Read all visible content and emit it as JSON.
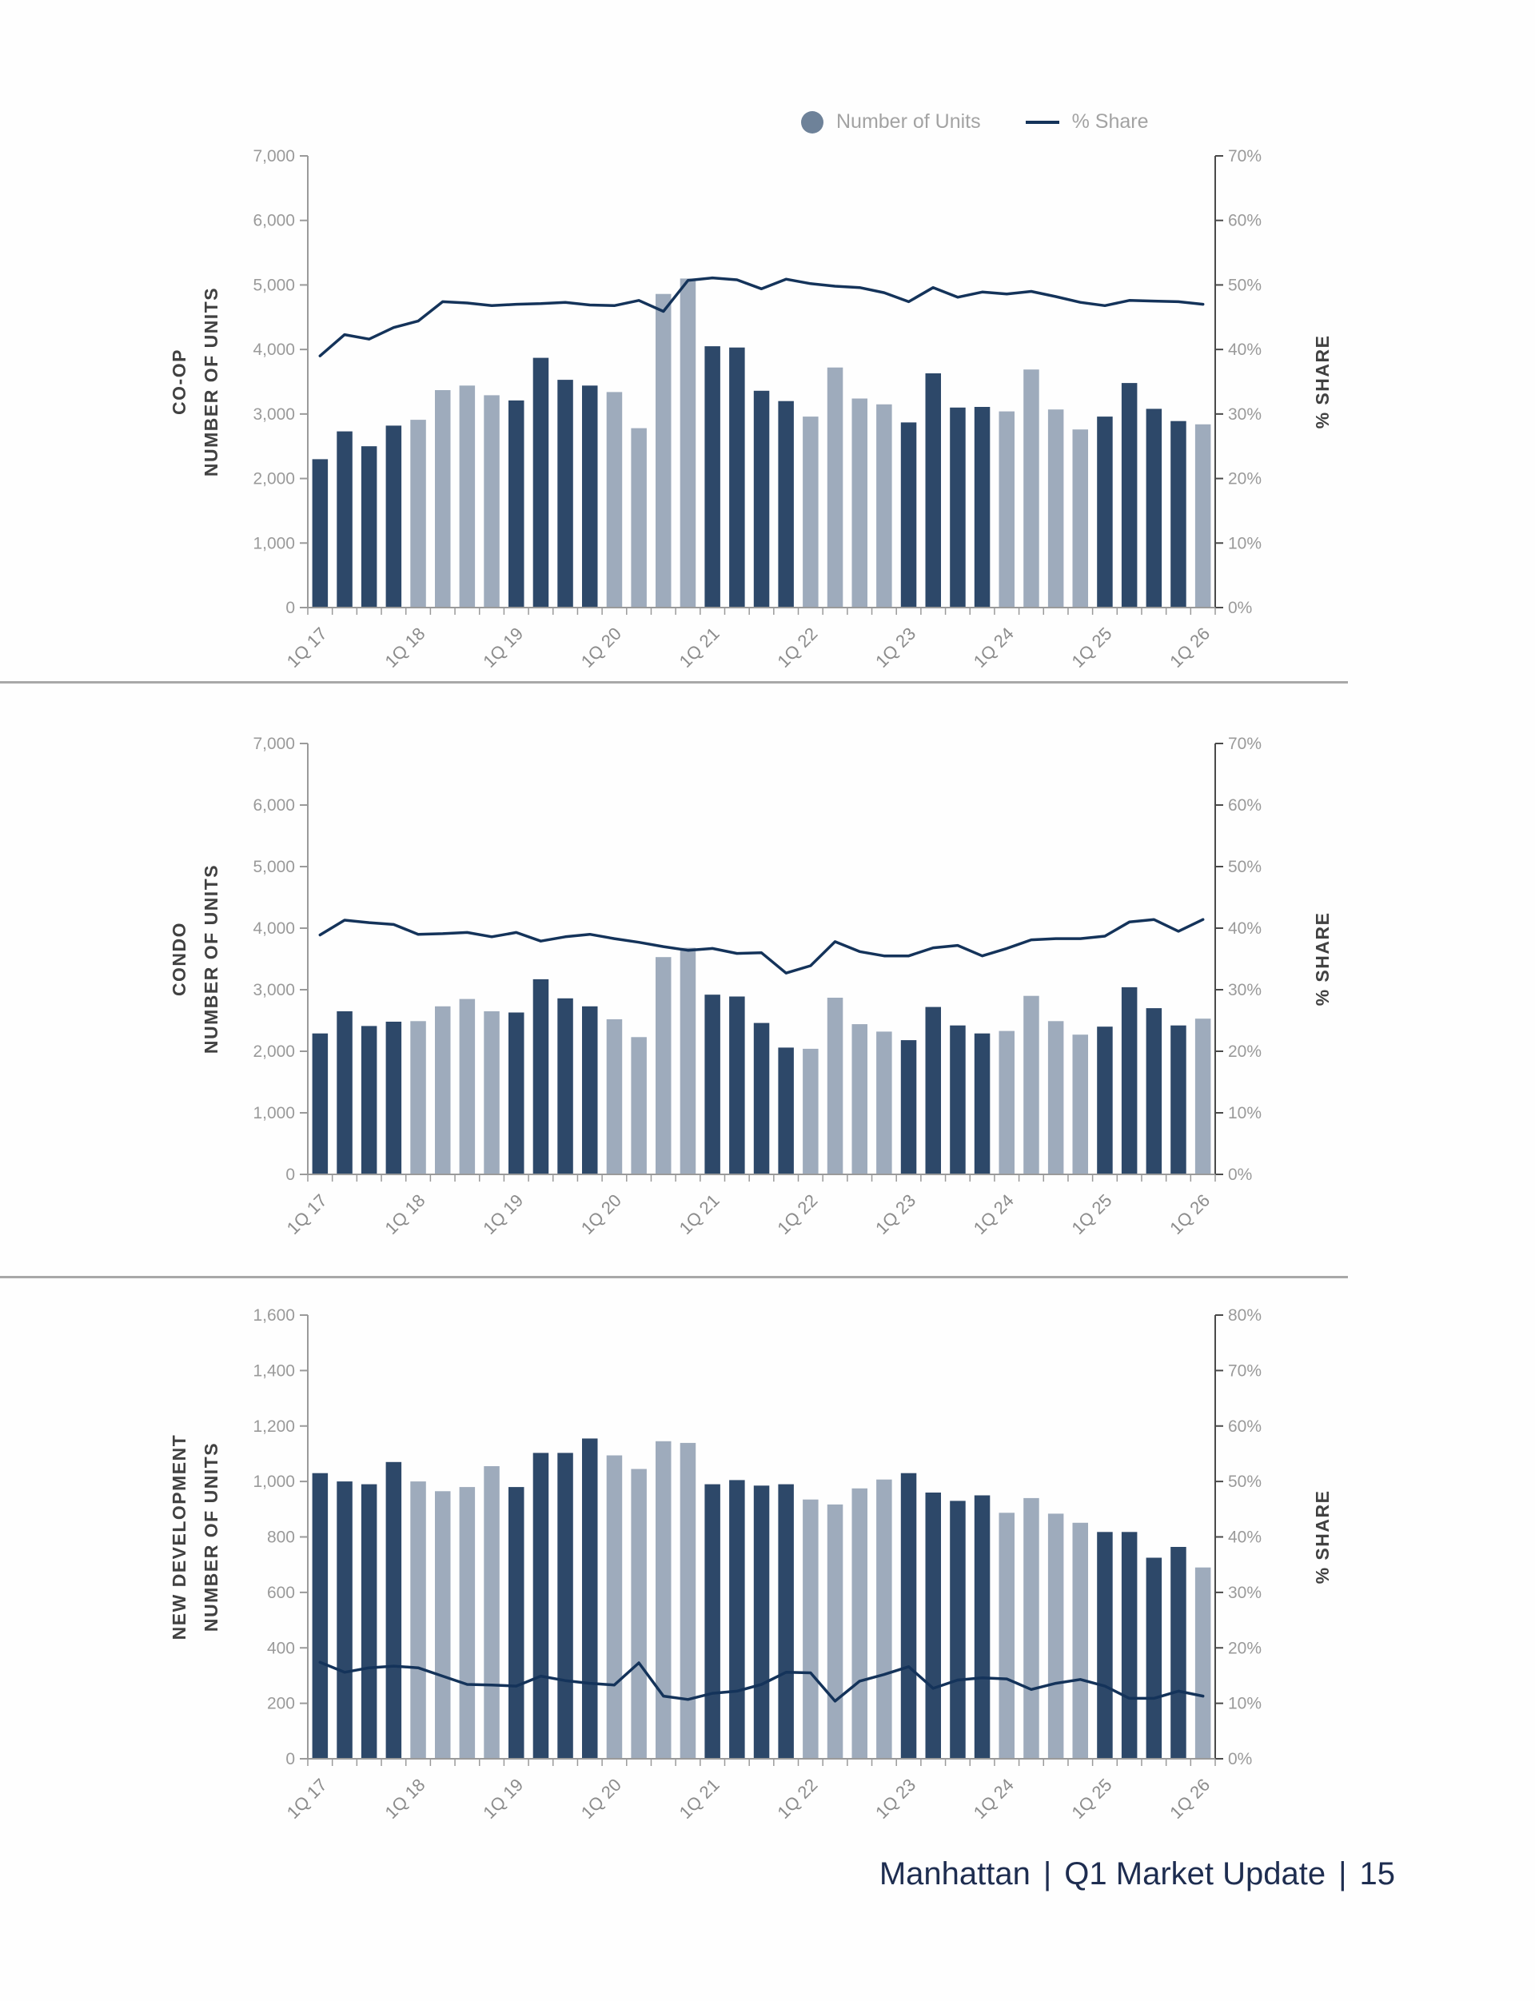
{
  "legend": {
    "units_label": "Number of Units",
    "share_label": "% Share"
  },
  "footer": {
    "region": "Manhattan",
    "separator": "|",
    "report": "Q1 Market Update",
    "page_number": "15"
  },
  "colors": {
    "bar_dark": "#2d4869",
    "bar_light": "#9eabbc",
    "share_line": "#14335a",
    "legend_circle": "#6e8299",
    "axis_gray": "#9a9a9a",
    "axis_dark": "#4a4a4a",
    "divider": "#a8a8a8",
    "footer_text": "#1e2d50"
  },
  "quarters": [
    "1Q 17",
    "2Q 17",
    "3Q 17",
    "4Q 17",
    "1Q 18",
    "2Q 18",
    "3Q 18",
    "4Q 18",
    "1Q 19",
    "2Q 19",
    "3Q 19",
    "4Q 19",
    "1Q 20",
    "2Q 20",
    "3Q 20",
    "4Q 20",
    "1Q 21",
    "2Q 21",
    "3Q 21",
    "4Q 21",
    "1Q 22",
    "2Q 22",
    "3Q 22",
    "4Q 22",
    "1Q 23",
    "2Q 23",
    "3Q 23",
    "4Q 23",
    "1Q 24",
    "2Q 24",
    "3Q 24",
    "4Q 24",
    "1Q 25",
    "2Q 25",
    "3Q 25",
    "4Q 25",
    "1Q 26"
  ],
  "chart_data": [
    {
      "id": "coop",
      "type": "bar+line",
      "section_label": [
        "CO-OP",
        "NUMBER OF UNITS"
      ],
      "right_axis_label": "% SHARE",
      "units_axis": {
        "min": 0,
        "max": 7000,
        "step": 1000,
        "tick_labels": [
          "7,000",
          "6,000",
          "5,000",
          "4,000",
          "3,000",
          "2,000",
          "1,000",
          "0"
        ]
      },
      "share_axis": {
        "min": 0,
        "max": 70,
        "step": 10,
        "tick_labels": [
          "70%",
          "60%",
          "50%",
          "40%",
          "30%",
          "20%",
          "10%",
          "0%"
        ]
      },
      "x_tick_labels": [
        "1Q 17",
        "1Q 18",
        "1Q 19",
        "1Q 20",
        "1Q 21",
        "1Q 22",
        "1Q 23",
        "1Q 24",
        "1Q 25",
        "1Q 26"
      ],
      "series": [
        {
          "name": "Number of Units",
          "values": [
            2300,
            2730,
            2500,
            2820,
            2910,
            3370,
            3440,
            3290,
            3210,
            3870,
            3530,
            3440,
            3340,
            2780,
            4860,
            5100,
            4050,
            4030,
            3360,
            3200,
            2960,
            3720,
            3240,
            3150,
            2870,
            3630,
            3100,
            3110,
            3040,
            3690,
            3070,
            2760,
            2960,
            3480,
            3080,
            2890,
            2840
          ]
        },
        {
          "name": "% Share",
          "values": [
            39.0,
            42.3,
            41.6,
            43.4,
            44.4,
            47.4,
            47.2,
            46.8,
            47.0,
            47.1,
            47.3,
            46.9,
            46.8,
            47.6,
            45.9,
            50.7,
            51.1,
            50.8,
            49.4,
            50.9,
            50.2,
            49.8,
            49.6,
            48.8,
            47.4,
            49.6,
            48.1,
            48.9,
            48.6,
            49.0,
            48.2,
            47.3,
            46.8,
            47.6,
            47.5,
            47.4,
            47.0
          ]
        }
      ]
    },
    {
      "id": "condo",
      "type": "bar+line",
      "section_label": [
        "CONDO",
        "NUMBER OF UNITS"
      ],
      "right_axis_label": "% SHARE",
      "units_axis": {
        "min": 0,
        "max": 7000,
        "step": 1000,
        "tick_labels": [
          "7,000",
          "6,000",
          "5,000",
          "4,000",
          "3,000",
          "2,000",
          "1,000",
          "0"
        ]
      },
      "share_axis": {
        "min": 0,
        "max": 70,
        "step": 10,
        "tick_labels": [
          "70%",
          "60%",
          "50%",
          "40%",
          "30%",
          "20%",
          "10%",
          "0%"
        ]
      },
      "x_tick_labels": [
        "1Q 17",
        "1Q 18",
        "1Q 19",
        "1Q 20",
        "1Q 21",
        "1Q 22",
        "1Q 23",
        "1Q 24",
        "1Q 25",
        "1Q 26"
      ],
      "series": [
        {
          "name": "Number of Units",
          "values": [
            2290,
            2650,
            2410,
            2480,
            2490,
            2730,
            2850,
            2650,
            2630,
            3170,
            2860,
            2730,
            2520,
            2230,
            3530,
            3680,
            2920,
            2890,
            2460,
            2060,
            2040,
            2870,
            2440,
            2320,
            2180,
            2720,
            2420,
            2290,
            2330,
            2900,
            2490,
            2270,
            2400,
            3040,
            2700,
            2420,
            2530
          ]
        },
        {
          "name": "% Share",
          "values": [
            38.9,
            41.3,
            40.9,
            40.6,
            39.0,
            39.1,
            39.3,
            38.6,
            39.3,
            37.9,
            38.6,
            39.0,
            38.3,
            37.7,
            37.0,
            36.4,
            36.7,
            35.9,
            36.0,
            32.7,
            33.9,
            37.8,
            36.2,
            35.5,
            35.5,
            36.8,
            37.2,
            35.5,
            36.7,
            38.1,
            38.3,
            38.3,
            38.7,
            41.0,
            41.4,
            39.5,
            41.4
          ]
        }
      ]
    },
    {
      "id": "new-development",
      "type": "bar+line",
      "section_label": [
        "NEW DEVELOPMENT",
        "NUMBER OF UNITS"
      ],
      "right_axis_label": "% SHARE",
      "units_axis": {
        "min": 0,
        "max": 1600,
        "step": 200,
        "tick_labels": [
          "1,600",
          "1,400",
          "1,200",
          "1,000",
          "800",
          "600",
          "400",
          "200",
          "0"
        ]
      },
      "share_axis": {
        "min": 0,
        "max": 80,
        "step": 10,
        "tick_labels": [
          "80%",
          "70%",
          "60%",
          "50%",
          "40%",
          "30%",
          "20%",
          "10%",
          "0%"
        ]
      },
      "x_tick_labels": [
        "1Q 17",
        "1Q 18",
        "1Q 19",
        "1Q 20",
        "1Q 21",
        "1Q 22",
        "1Q 23",
        "1Q 24",
        "1Q 25",
        "1Q 26"
      ],
      "series": [
        {
          "name": "Number of Units",
          "values": [
            1030,
            1000,
            990,
            1070,
            1000,
            965,
            980,
            1055,
            980,
            1103,
            1103,
            1155,
            1094,
            1045,
            1145,
            1139,
            990,
            1005,
            985,
            990,
            935,
            917,
            975,
            1007,
            1030,
            960,
            930,
            950,
            887,
            940,
            884,
            851,
            818,
            818,
            725,
            764,
            690
          ]
        },
        {
          "name": "% Share",
          "values": [
            17.4,
            15.6,
            16.4,
            16.7,
            16.4,
            14.9,
            13.4,
            13.3,
            13.1,
            14.9,
            14.1,
            13.6,
            13.3,
            17.3,
            11.3,
            10.7,
            11.8,
            12.2,
            13.4,
            15.6,
            15.5,
            10.4,
            14.0,
            15.2,
            16.6,
            12.7,
            14.2,
            14.6,
            14.4,
            12.5,
            13.6,
            14.3,
            13.1,
            10.9,
            10.9,
            12.2,
            11.3
          ]
        }
      ]
    }
  ]
}
